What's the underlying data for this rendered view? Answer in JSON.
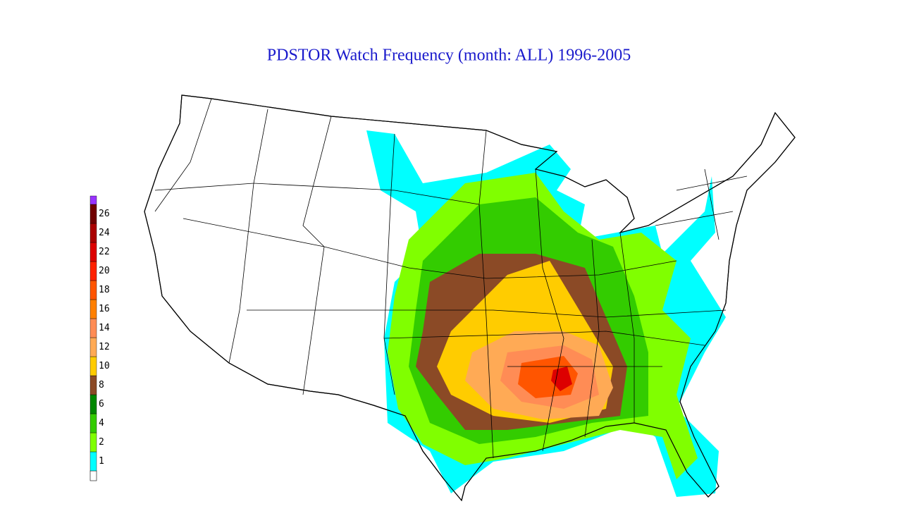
{
  "title": "PDSTOR Watch Frequency (month: ALL) 1996-2005",
  "legend": {
    "bottom_color": "#ffffff",
    "top_color": "#9933ff",
    "items": [
      {
        "label": "1",
        "color": "#00ffff"
      },
      {
        "label": "2",
        "color": "#80ff00"
      },
      {
        "label": "4",
        "color": "#33cc00"
      },
      {
        "label": "6",
        "color": "#008800"
      },
      {
        "label": "8",
        "color": "#8b4a26"
      },
      {
        "label": "10",
        "color": "#ffcc00"
      },
      {
        "label": "12",
        "color": "#ffaa55"
      },
      {
        "label": "14",
        "color": "#ff8c55"
      },
      {
        "label": "16",
        "color": "#ff8000"
      },
      {
        "label": "18",
        "color": "#ff5500"
      },
      {
        "label": "20",
        "color": "#ff2200"
      },
      {
        "label": "22",
        "color": "#dd0000"
      },
      {
        "label": "24",
        "color": "#aa0000"
      },
      {
        "label": "26",
        "color": "#700000"
      }
    ]
  }
}
